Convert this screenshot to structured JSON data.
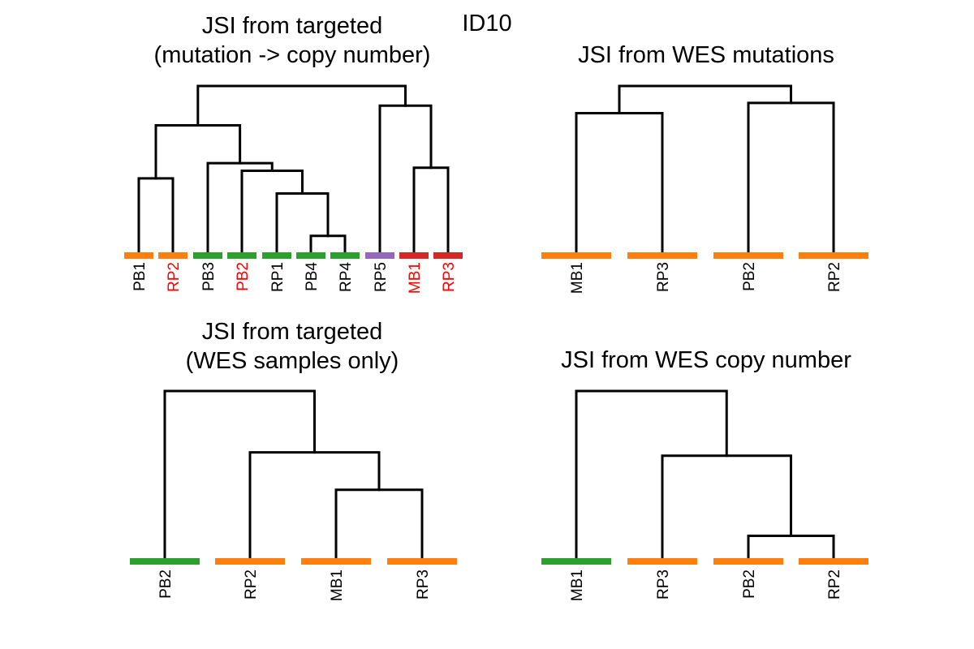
{
  "figure": {
    "title": "ID10"
  },
  "colors": {
    "orange": "#ff7f0e",
    "green": "#2ca02c",
    "purple": "#9467bd",
    "red": "#d62728",
    "label_red": "#ff0000",
    "label_black": "#000000",
    "line": "#000000"
  },
  "panels": [
    {
      "id": "p1",
      "title_lines": [
        "JSI from targeted",
        "(mutation -> copy number)"
      ],
      "leaves": [
        {
          "label": "PB1",
          "bar_color": "orange",
          "label_color": "label_black"
        },
        {
          "label": "RP2",
          "bar_color": "orange",
          "label_color": "label_red"
        },
        {
          "label": "PB3",
          "bar_color": "green",
          "label_color": "label_black"
        },
        {
          "label": "PB2",
          "bar_color": "green",
          "label_color": "label_red"
        },
        {
          "label": "RP1",
          "bar_color": "green",
          "label_color": "label_black"
        },
        {
          "label": "PB4",
          "bar_color": "green",
          "label_color": "label_black"
        },
        {
          "label": "RP4",
          "bar_color": "green",
          "label_color": "label_black"
        },
        {
          "label": "RP5",
          "bar_color": "purple",
          "label_color": "label_black"
        },
        {
          "label": "MB1",
          "bar_color": "red",
          "label_color": "label_red"
        },
        {
          "label": "RP3",
          "bar_color": "red",
          "label_color": "label_red"
        }
      ],
      "merges": [
        {
          "a": 5,
          "b": 6,
          "height": 0.13
        },
        {
          "a": 4,
          "b": -1,
          "height": 0.41
        },
        {
          "a": 3,
          "b": -2,
          "height": 0.56
        },
        {
          "a": 2,
          "b": -3,
          "height": 0.61
        },
        {
          "a": 0,
          "b": 1,
          "height": 0.51
        },
        {
          "a": -5,
          "b": -4,
          "height": 0.86
        },
        {
          "a": 8,
          "b": 9,
          "height": 0.58
        },
        {
          "a": 7,
          "b": -7,
          "height": 0.99
        },
        {
          "a": -6,
          "b": -8,
          "height": 1.12
        }
      ],
      "max_height": 1.12
    },
    {
      "id": "p2",
      "title_lines": [
        "JSI from WES mutations"
      ],
      "leaves": [
        {
          "label": "MB1",
          "bar_color": "orange",
          "label_color": "label_black"
        },
        {
          "label": "RP3",
          "bar_color": "orange",
          "label_color": "label_black"
        },
        {
          "label": "PB2",
          "bar_color": "orange",
          "label_color": "label_black"
        },
        {
          "label": "RP2",
          "bar_color": "orange",
          "label_color": "label_black"
        }
      ],
      "merges": [
        {
          "a": 0,
          "b": 1,
          "height": 0.84
        },
        {
          "a": 2,
          "b": 3,
          "height": 0.9
        },
        {
          "a": -1,
          "b": -2,
          "height": 1.0
        }
      ],
      "max_height": 1.0
    },
    {
      "id": "p3",
      "title_lines": [
        "JSI from targeted",
        "(WES samples only)"
      ],
      "leaves": [
        {
          "label": "PB2",
          "bar_color": "green",
          "label_color": "label_black"
        },
        {
          "label": "RP2",
          "bar_color": "orange",
          "label_color": "label_black"
        },
        {
          "label": "MB1",
          "bar_color": "orange",
          "label_color": "label_black"
        },
        {
          "label": "RP3",
          "bar_color": "orange",
          "label_color": "label_black"
        }
      ],
      "merges": [
        {
          "a": 2,
          "b": 3,
          "height": 0.42
        },
        {
          "a": 1,
          "b": -1,
          "height": 0.64
        },
        {
          "a": 0,
          "b": -2,
          "height": 1.0
        }
      ],
      "max_height": 1.0
    },
    {
      "id": "p4",
      "title_lines": [
        "JSI from WES copy number"
      ],
      "leaves": [
        {
          "label": "MB1",
          "bar_color": "green",
          "label_color": "label_black"
        },
        {
          "label": "RP3",
          "bar_color": "orange",
          "label_color": "label_black"
        },
        {
          "label": "PB2",
          "bar_color": "orange",
          "label_color": "label_black"
        },
        {
          "label": "RP2",
          "bar_color": "orange",
          "label_color": "label_black"
        }
      ],
      "merges": [
        {
          "a": 2,
          "b": 3,
          "height": 0.15
        },
        {
          "a": 1,
          "b": -1,
          "height": 0.62
        },
        {
          "a": 0,
          "b": -2,
          "height": 1.0
        }
      ],
      "max_height": 1.0
    }
  ]
}
